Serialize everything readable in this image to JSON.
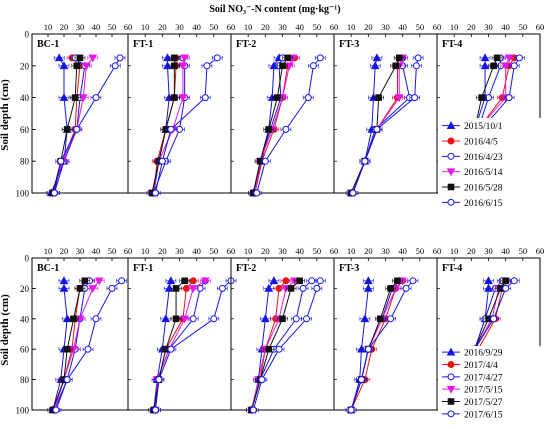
{
  "figure": {
    "top_axis_title": "Soil NO₃⁻-N content (mg·kg⁻¹)",
    "y_axis_title": "Soil depth  (cm)"
  },
  "chart_data": [
    {
      "type": "line",
      "row": 0,
      "xlabel": "Soil NO₃⁻-N content (mg·kg⁻¹)",
      "ylabel": "Soil depth (cm)",
      "xlim": [
        0,
        60
      ],
      "ylim": [
        100,
        0
      ],
      "x_ticks": [
        10,
        20,
        30,
        40,
        50,
        60
      ],
      "y_ticks": [
        0,
        20,
        40,
        60,
        80,
        100
      ],
      "depths": [
        15,
        20,
        40,
        60,
        80,
        100
      ],
      "series": [
        {
          "name": "2015/10/1",
          "color": "#1515e6",
          "marker": "triangle-up",
          "filled": true
        },
        {
          "name": "2016/4/5",
          "color": "#e61515",
          "marker": "circle",
          "filled": true
        },
        {
          "name": "2016/4/23",
          "color": "#1515e6",
          "marker": "circle",
          "filled": false
        },
        {
          "name": "2016/5/14",
          "color": "#e619e6",
          "marker": "triangle-down",
          "filled": true
        },
        {
          "name": "2016/5/28",
          "color": "#111111",
          "marker": "square",
          "filled": true
        },
        {
          "name": "2016/6/15",
          "color": "#1515e6",
          "marker": "circle",
          "filled": false
        }
      ],
      "panels": [
        {
          "label": "BC-1",
          "values": [
            [
              17,
              20,
              20,
              22,
              20,
              12
            ],
            [
              25,
              30,
              28,
              27,
              19,
              13
            ],
            [
              27,
              33,
              30,
              28,
              20,
              14
            ],
            [
              38,
              34,
              32,
              28,
              19,
              13
            ],
            [
              30,
              28,
              27,
              22,
              18,
              13
            ],
            [
              55,
              52,
              40,
              28,
              18,
              14
            ]
          ]
        },
        {
          "label": "FT-1",
          "values": [
            [
              23,
              23,
              24,
              22,
              18,
              15
            ],
            [
              28,
              28,
              27,
              22,
              17,
              15
            ],
            [
              32,
              33,
              33,
              30,
              22,
              15
            ],
            [
              33,
              32,
              32,
              26,
              18,
              14
            ],
            [
              27,
              27,
              27,
              22,
              18,
              14
            ],
            [
              52,
              46,
              45,
              25,
              20,
              16
            ]
          ]
        },
        {
          "label": "FT-2",
          "values": [
            [
              28,
              25,
              24,
              22,
              18,
              13
            ],
            [
              37,
              33,
              30,
              25,
              18,
              14
            ],
            [
              30,
              28,
              29,
              23,
              17,
              13
            ],
            [
              36,
              34,
              30,
              24,
              17,
              14
            ],
            [
              33,
              30,
              27,
              22,
              17,
              13
            ],
            [
              52,
              48,
              45,
              32,
              20,
              15
            ]
          ]
        },
        {
          "label": "FT-3",
          "values": [
            [
              25,
              24,
              23,
              22,
              18,
              10
            ],
            [
              38,
              37,
              37,
              25,
              18,
              11
            ],
            [
              40,
              40,
              44,
              24,
              18,
              11
            ],
            [
              40,
              38,
              38,
              25,
              18,
              10
            ],
            [
              38,
              36,
              26,
              25,
              18,
              10
            ],
            [
              49,
              48,
              47,
              25,
              18,
              11
            ]
          ]
        },
        {
          "label": "FT-4",
          "values": [
            [
              28,
              28,
              28,
              22,
              16,
              12
            ],
            [
              45,
              42,
              38,
              24,
              18,
              12
            ],
            [
              37,
              37,
              30,
              24,
              18,
              12
            ],
            [
              42,
              40,
              40,
              24,
              16,
              12
            ],
            [
              35,
              33,
              26,
              22,
              17,
              12
            ],
            [
              48,
              45,
              42,
              26,
              18,
              12
            ]
          ]
        }
      ]
    },
    {
      "type": "line",
      "row": 1,
      "xlabel": "Soil NO₃⁻-N content (mg·kg⁻¹)",
      "ylabel": "Soil depth (cm)",
      "xlim": [
        0,
        60
      ],
      "ylim": [
        100,
        0
      ],
      "x_ticks": [
        10,
        20,
        30,
        40,
        50,
        60
      ],
      "y_ticks": [
        0,
        20,
        40,
        60,
        80,
        100
      ],
      "depths": [
        15,
        20,
        40,
        60,
        80,
        100
      ],
      "series": [
        {
          "name": "2016/9/29",
          "color": "#1515e6",
          "marker": "triangle-up",
          "filled": true
        },
        {
          "name": "2017/4/4",
          "color": "#e61515",
          "marker": "circle",
          "filled": true
        },
        {
          "name": "2017/4/27",
          "color": "#1515e6",
          "marker": "circle",
          "filled": false
        },
        {
          "name": "2017/5/15",
          "color": "#e619e6",
          "marker": "triangle-down",
          "filled": true
        },
        {
          "name": "2017/5/27",
          "color": "#111111",
          "marker": "square",
          "filled": true
        },
        {
          "name": "2017/6/15",
          "color": "#1515e6",
          "marker": "circle",
          "filled": false
        }
      ],
      "panels": [
        {
          "label": "BC-1",
          "values": [
            [
              20,
              20,
              22,
              20,
              18,
              13
            ],
            [
              35,
              30,
              27,
              25,
              20,
              13
            ],
            [
              36,
              33,
              30,
              27,
              22,
              14
            ],
            [
              42,
              38,
              30,
              26,
              20,
              14
            ],
            [
              33,
              30,
              26,
              22,
              20,
              13
            ],
            [
              56,
              50,
              40,
              35,
              22,
              15
            ]
          ]
        },
        {
          "label": "FT-1",
          "values": [
            [
              25,
              24,
              22,
              20,
              17,
              15
            ],
            [
              38,
              34,
              32,
              22,
              18,
              15
            ],
            [
              45,
              42,
              38,
              24,
              17,
              16
            ],
            [
              45,
              38,
              33,
              24,
              17,
              16
            ],
            [
              33,
              28,
              28,
              22,
              18,
              15
            ],
            [
              60,
              55,
              50,
              25,
              18,
              16
            ]
          ]
        },
        {
          "label": "FT-2",
          "values": [
            [
              25,
              22,
              20,
              18,
              16,
              12
            ],
            [
              32,
              28,
              26,
              20,
              17,
              12
            ],
            [
              47,
              42,
              38,
              25,
              17,
              12
            ],
            [
              37,
              32,
              28,
              20,
              16,
              12
            ],
            [
              40,
              35,
              30,
              22,
              17,
              12
            ],
            [
              52,
              50,
              44,
              28,
              18,
              13
            ]
          ]
        },
        {
          "label": "FT-3",
          "values": [
            [
              20,
              20,
              18,
              16,
              15,
              10
            ],
            [
              40,
              36,
              30,
              22,
              18,
              10
            ],
            [
              38,
              34,
              28,
              20,
              16,
              10
            ],
            [
              40,
              36,
              28,
              20,
              16,
              10
            ],
            [
              37,
              33,
              27,
              20,
              16,
              10
            ],
            [
              46,
              42,
              33,
              20,
              16,
              10
            ]
          ]
        },
        {
          "label": "FT-4",
          "values": [
            [
              30,
              30,
              28,
              22,
              18,
              12
            ],
            [
              40,
              38,
              34,
              24,
              18,
              12
            ],
            [
              38,
              34,
              28,
              22,
              17,
              12
            ],
            [
              40,
              36,
              32,
              22,
              17,
              12
            ],
            [
              40,
              37,
              30,
              22,
              17,
              12
            ],
            [
              45,
              40,
              33,
              22,
              17,
              13
            ]
          ]
        }
      ]
    }
  ]
}
